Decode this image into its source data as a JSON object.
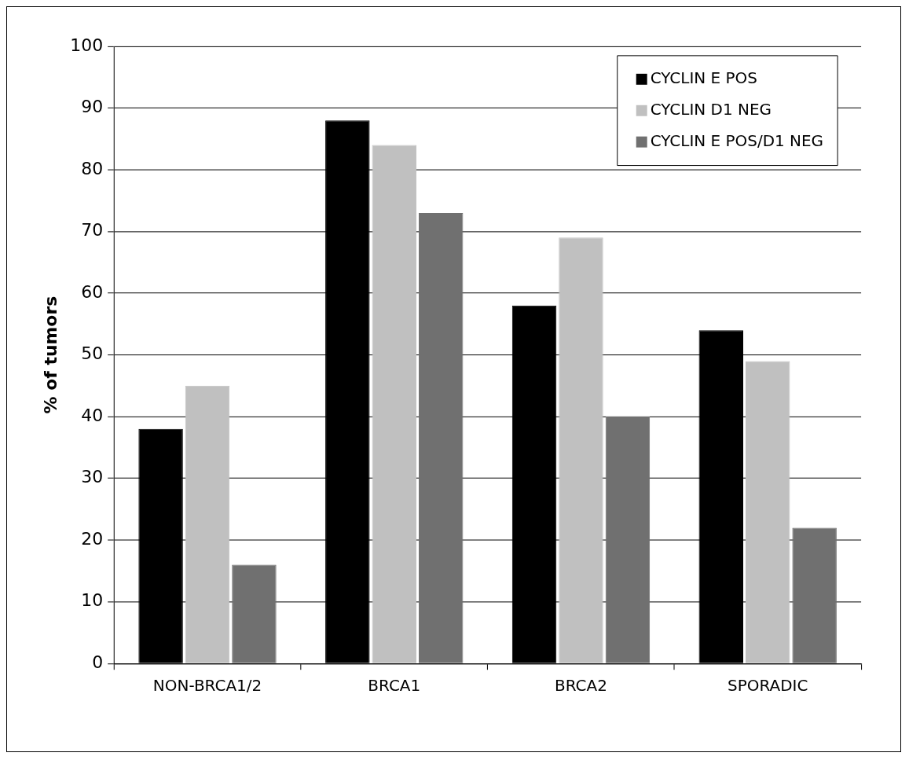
{
  "chart_data": {
    "type": "bar",
    "ylabel": "% of tumors",
    "categories": [
      "NON-BRCA1/2",
      "BRCA1",
      "BRCA2",
      "SPORADIC"
    ],
    "series": [
      {
        "name": "CYCLIN E POS",
        "color": "#000000",
        "values": [
          38,
          88,
          58,
          54
        ]
      },
      {
        "name": "CYCLIN D1 NEG",
        "color": "#c0c0c0",
        "values": [
          45,
          84,
          69,
          49
        ]
      },
      {
        "name": "CYCLIN E POS/D1 NEG",
        "color": "#707070",
        "values": [
          16,
          73,
          40,
          22
        ]
      }
    ],
    "ylim": [
      0,
      100
    ],
    "yticks": [
      0,
      10,
      20,
      30,
      40,
      50,
      60,
      70,
      80,
      90,
      100
    ],
    "grid": "y",
    "legend": "top right"
  }
}
